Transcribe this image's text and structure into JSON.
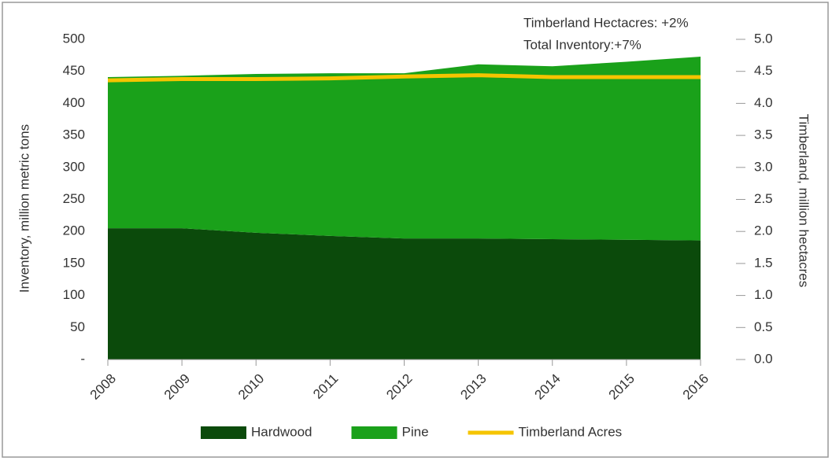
{
  "chart_data": {
    "type": "area",
    "stacked": true,
    "annotations": [
      "Timberland Hectacres: +2%",
      "Total Inventory:+7%"
    ],
    "y_label": "Inventory, million metric tons",
    "y2_label": "Timberland, million hectacres",
    "categories": [
      "2008",
      "2009",
      "2010",
      "2011",
      "2012",
      "2013",
      "2014",
      "2015",
      "2016"
    ],
    "series": [
      {
        "name": "Hardwood",
        "color": "#0b4a0b",
        "values": [
          205,
          205,
          198,
          193,
          189,
          189,
          188,
          187,
          186
        ]
      },
      {
        "name": "Pine",
        "color": "#1aa11a",
        "values": [
          236,
          238,
          248,
          254,
          258,
          272,
          270,
          278,
          287
        ]
      },
      {
        "name": "Timberland Acres",
        "type": "line",
        "axis": "y2",
        "color": "#f5c400",
        "values": [
          4.36,
          4.38,
          4.38,
          4.39,
          4.42,
          4.44,
          4.41,
          4.41,
          4.41
        ]
      }
    ],
    "ylim": [
      0,
      500
    ],
    "yticks": [
      {
        "value": 0,
        "label": "-"
      },
      50,
      100,
      150,
      200,
      250,
      300,
      350,
      400,
      450,
      500
    ],
    "y2lim": [
      0,
      5
    ],
    "y2ticks": [
      {
        "value": 0,
        "label": "0.0"
      },
      0.5,
      {
        "value": 1,
        "label": "1.0"
      },
      1.5,
      {
        "value": 2,
        "label": "2.0"
      },
      2.5,
      {
        "value": 3,
        "label": "3.0"
      },
      3.5,
      {
        "value": 4,
        "label": "4.0"
      },
      4.5,
      {
        "value": 5,
        "label": "5.0"
      }
    ],
    "legend": "bottom"
  }
}
